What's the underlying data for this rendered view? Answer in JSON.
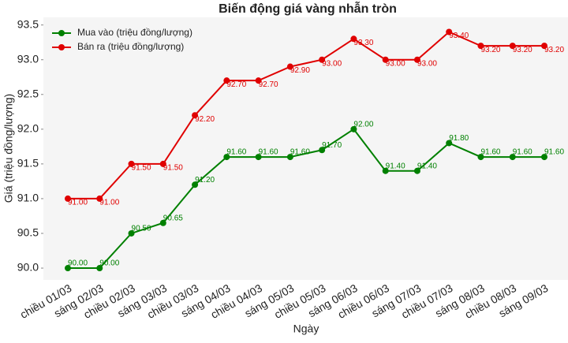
{
  "chart_data": {
    "type": "line",
    "title": "Biến động giá vàng nhẫn tròn",
    "x_label": "Ngày",
    "y_label": "Giá (triệu đồng/lượng)",
    "categories": [
      "chiều 01/03",
      "sáng 02/03",
      "chiều 02/03",
      "sáng 03/03",
      "chiều 03/03",
      "sáng 04/03",
      "chiều 04/03",
      "sáng 05/03",
      "chiều 05/03",
      "sáng 06/03",
      "chiều 06/03",
      "sáng 07/03",
      "chiều 07/03",
      "sáng 08/03",
      "chiều 08/03",
      "sáng 09/03"
    ],
    "series": [
      {
        "name": "Mua vào (triệu đồng/lượng)",
        "color": "#008000",
        "values": [
          90.0,
          90.0,
          90.5,
          90.65,
          91.2,
          91.6,
          91.6,
          91.6,
          91.7,
          92.0,
          91.4,
          91.4,
          91.8,
          91.6,
          91.6,
          91.6
        ],
        "value_labels": [
          "90.00",
          "90.00",
          "90.50",
          "90.65",
          "91.20",
          "91.60",
          "91.60",
          "91.60",
          "91.70",
          "92.00",
          "91.40",
          "91.40",
          "91.80",
          "91.60",
          "91.60",
          "91.60"
        ]
      },
      {
        "name": "Bán ra (triệu đồng/lượng)",
        "color": "#e00000",
        "values": [
          91.0,
          91.0,
          91.5,
          91.5,
          92.2,
          92.7,
          92.7,
          92.9,
          93.0,
          93.3,
          93.0,
          93.0,
          93.4,
          93.2,
          93.2,
          93.2
        ],
        "value_labels": [
          "91.00",
          "91.00",
          "91.50",
          "91.50",
          "92.20",
          "92.70",
          "92.70",
          "92.90",
          "93.00",
          "93.30",
          "93.00",
          "93.00",
          "93.40",
          "93.20",
          "93.20",
          "93.20"
        ]
      }
    ],
    "ylim": [
      89.83,
      93.61
    ],
    "yticks": [
      {
        "value": 90.0,
        "label": "90.0"
      },
      90.5,
      {
        "value": 91.0,
        "label": "91.0"
      },
      91.5,
      {
        "value": 92.0,
        "label": "92.0"
      },
      92.5,
      {
        "value": 93.0,
        "label": "93.0"
      },
      93.5
    ],
    "grid": false,
    "legend": "upper left"
  }
}
